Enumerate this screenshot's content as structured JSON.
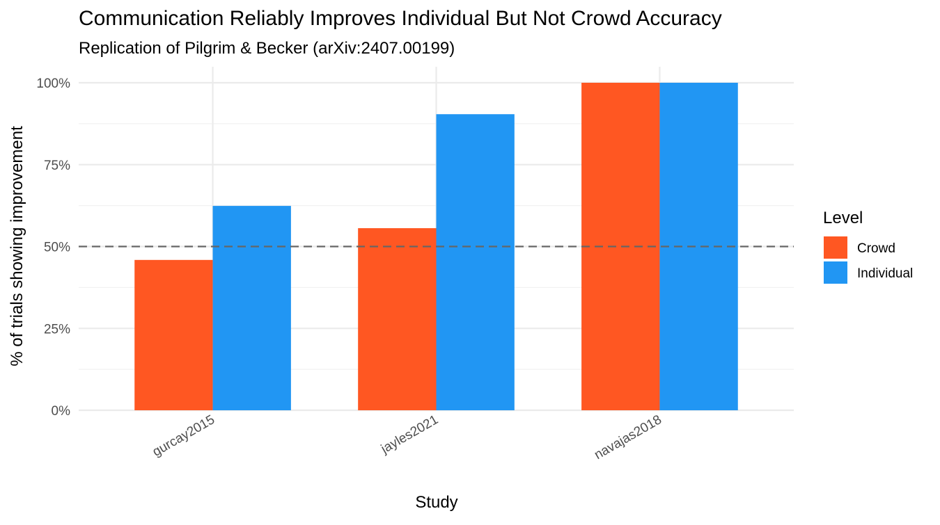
{
  "chart_data": {
    "type": "bar",
    "title": "Communication Reliably Improves Individual But Not Crowd Accuracy",
    "subtitle": "Replication of Pilgrim & Becker (arXiv:2407.00199)",
    "xlabel": "Study",
    "ylabel": "% of trials showing improvement",
    "categories": [
      "gurcay2015",
      "jayles2021",
      "navajas2018"
    ],
    "series": [
      {
        "name": "Crowd",
        "color": "#FF5722",
        "values": [
          45.9,
          55.6,
          100
        ]
      },
      {
        "name": "Individual",
        "color": "#2196F3",
        "values": [
          62.4,
          90.4,
          100
        ]
      }
    ],
    "ylim": [
      0,
      100
    ],
    "yticks": [
      0,
      25,
      50,
      75,
      100
    ],
    "ytick_labels": [
      "0%",
      "25%",
      "50%",
      "75%",
      "100%"
    ],
    "reference_line": {
      "y": 50,
      "style": "dashed",
      "color": "#666666"
    },
    "legend": {
      "title": "Level",
      "position": "right"
    },
    "grid": true
  }
}
